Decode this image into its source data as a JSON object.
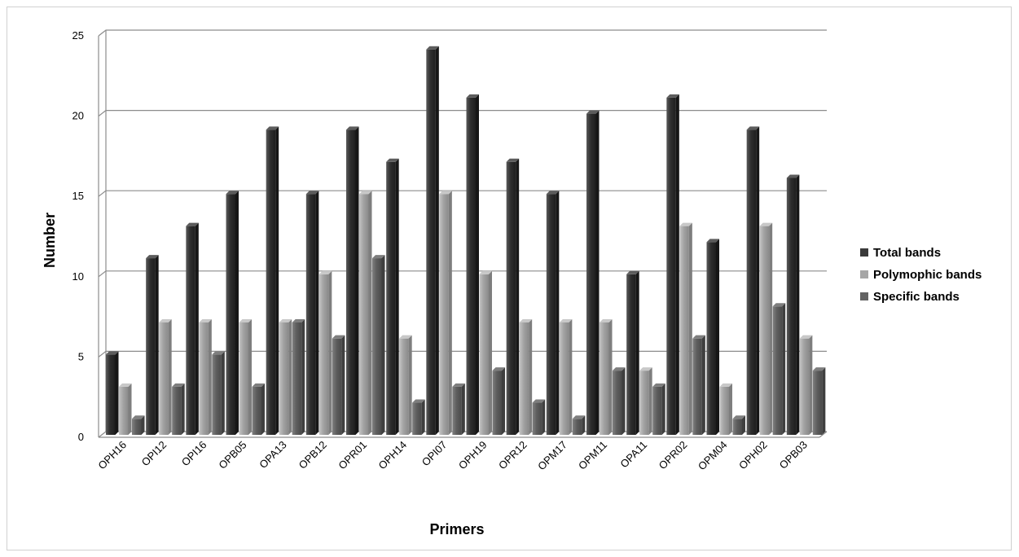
{
  "chart_data": {
    "type": "bar",
    "title": "",
    "xlabel": "Primers",
    "ylabel": "Number",
    "ylim": [
      0,
      25
    ],
    "yticks": [
      0,
      5,
      10,
      15,
      20,
      25
    ],
    "grid": true,
    "legend_position": "right",
    "categories": [
      "OPH16",
      "OPI12",
      "OPI16",
      "OPB05",
      "OPA13",
      "OPB12",
      "OPR01",
      "OPH14",
      "OPI07",
      "OPH19",
      "OPR12",
      "OPM17",
      "OPM11",
      "OPA11",
      "OPR02",
      "OPM04",
      "OPH02",
      "OPB03"
    ],
    "series": [
      {
        "name": "Total bands",
        "color": "#3a3a3a",
        "values": [
          5,
          11,
          13,
          15,
          19,
          15,
          19,
          17,
          24,
          21,
          17,
          15,
          20,
          10,
          21,
          12,
          19,
          16
        ]
      },
      {
        "name": "Polymophic bands",
        "color": "#a6a6a6",
        "values": [
          3,
          7,
          7,
          7,
          7,
          10,
          15,
          6,
          15,
          10,
          7,
          7,
          7,
          4,
          13,
          3,
          13,
          6
        ]
      },
      {
        "name": "Specific bands",
        "color": "#636363",
        "values": [
          1,
          3,
          5,
          3,
          7,
          6,
          11,
          2,
          3,
          4,
          2,
          1,
          4,
          3,
          6,
          1,
          8,
          4
        ]
      }
    ]
  }
}
